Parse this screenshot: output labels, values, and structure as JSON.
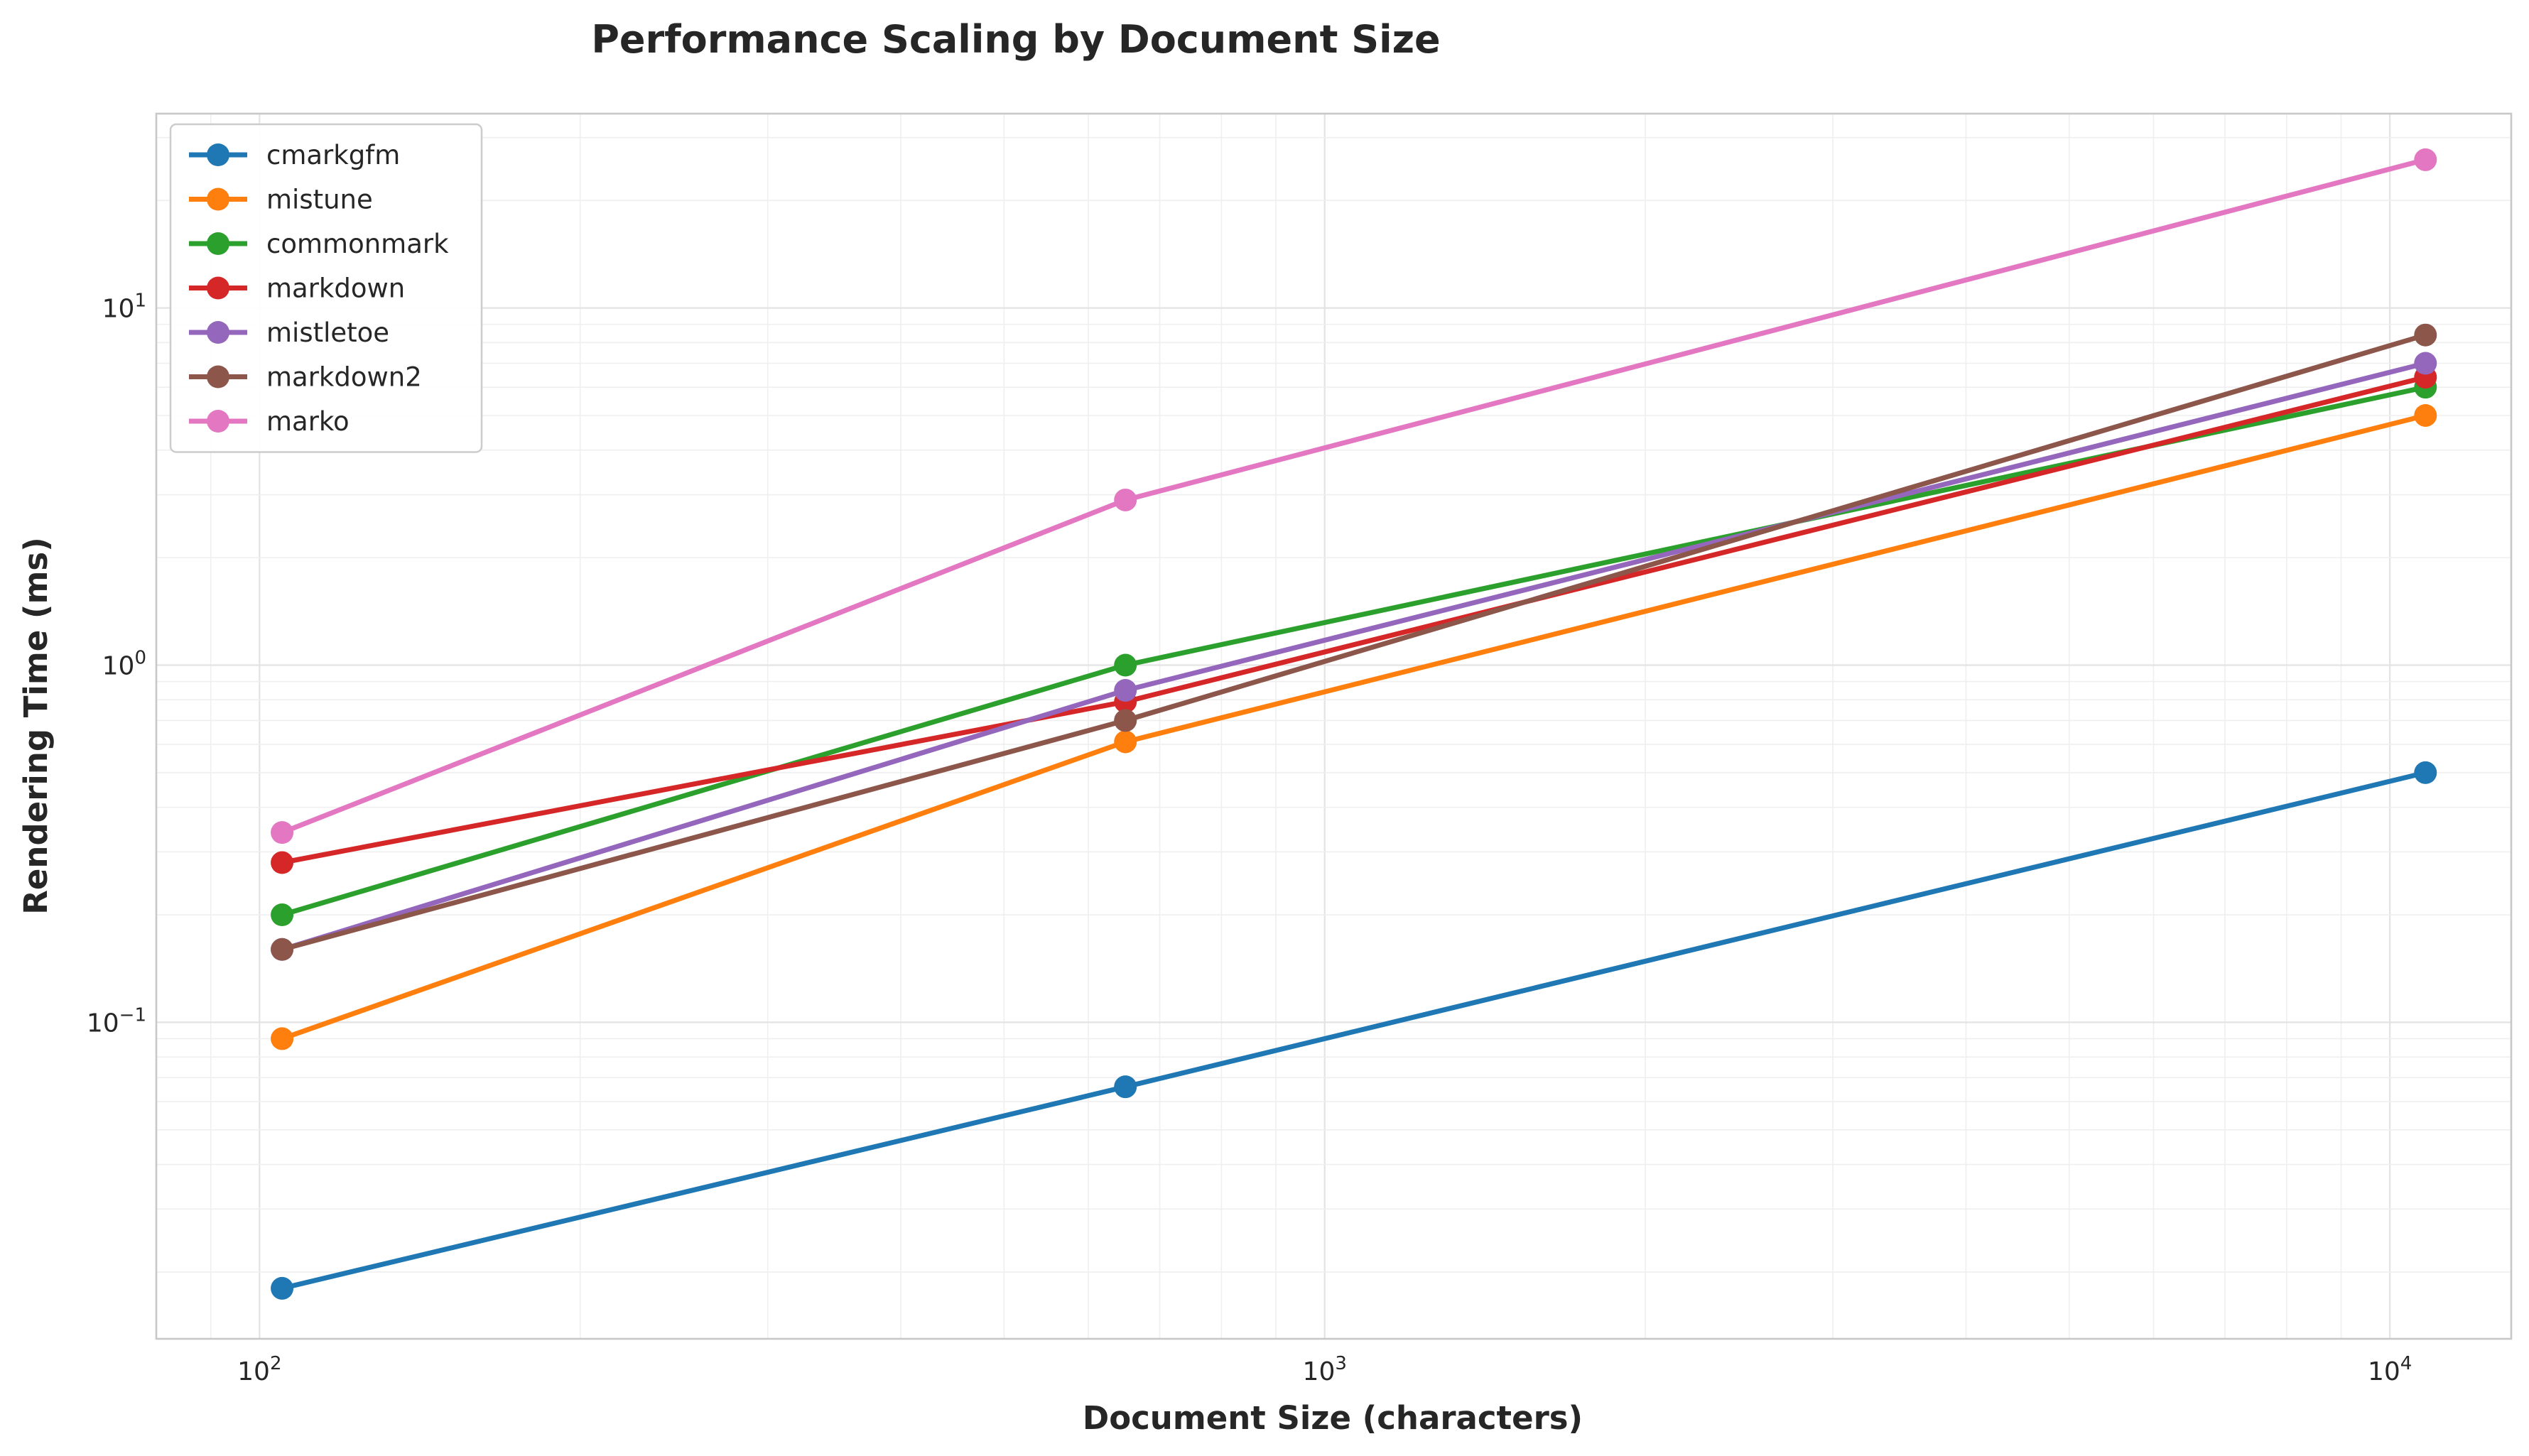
{
  "chart_data": {
    "type": "line",
    "title": "Performance Scaling by Document Size",
    "xlabel": "Document Size (characters)",
    "ylabel": "Rendering Time (ms)",
    "xscale": "log",
    "yscale": "log",
    "xlim": [
      80,
      13000
    ],
    "ylim": [
      0.013,
      35
    ],
    "grid": true,
    "legend_position": "upper-left",
    "x_ticks": [
      {
        "value": 100,
        "base": "10",
        "exp": "2"
      },
      {
        "value": 1000,
        "base": "10",
        "exp": "3"
      },
      {
        "value": 10000,
        "base": "10",
        "exp": "4"
      }
    ],
    "y_ticks": [
      {
        "value": 0.1,
        "base": "10",
        "exp": "−1"
      },
      {
        "value": 1,
        "base": "10",
        "exp": "0"
      },
      {
        "value": 10,
        "base": "10",
        "exp": "1"
      }
    ],
    "x": [
      105,
      650,
      10800
    ],
    "series": [
      {
        "name": "cmarkgfm",
        "color": "#1f77b4",
        "values": [
          0.018,
          0.066,
          0.5
        ]
      },
      {
        "name": "mistune",
        "color": "#ff7f0e",
        "values": [
          0.09,
          0.61,
          5.0
        ]
      },
      {
        "name": "commonmark",
        "color": "#2ca02c",
        "values": [
          0.2,
          1.0,
          6.0
        ]
      },
      {
        "name": "markdown",
        "color": "#d62728",
        "values": [
          0.28,
          0.79,
          6.4
        ]
      },
      {
        "name": "mistletoe",
        "color": "#9467bd",
        "values": [
          0.16,
          0.85,
          7.0
        ]
      },
      {
        "name": "markdown2",
        "color": "#8c564b",
        "values": [
          0.16,
          0.7,
          8.4
        ]
      },
      {
        "name": "marko",
        "color": "#e377c2",
        "values": [
          0.34,
          2.9,
          26.0
        ]
      }
    ]
  }
}
